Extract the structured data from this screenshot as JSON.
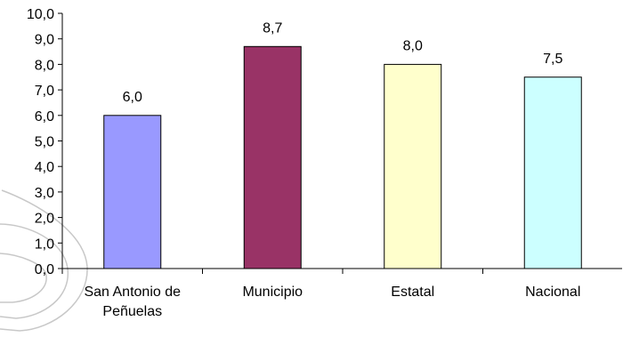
{
  "chart_data": {
    "type": "bar",
    "categories": [
      [
        "San Antonio de",
        "Peñuelas"
      ],
      [
        "Municipio"
      ],
      [
        "Estatal"
      ],
      [
        "Nacional"
      ]
    ],
    "values": [
      6.0,
      8.7,
      8.0,
      7.5
    ],
    "value_labels": [
      "6,0",
      "8,7",
      "8,0",
      "7,5"
    ],
    "bar_colors": [
      "#9999ff",
      "#993366",
      "#ffffcc",
      "#ccffff"
    ],
    "bar_edge_color": "#000000",
    "ylim": [
      0,
      10
    ],
    "y_ticks": [
      "0,0",
      "1,0",
      "2,0",
      "3,0",
      "4,0",
      "5,0",
      "6,0",
      "7,0",
      "8,0",
      "9,0",
      "10,0"
    ],
    "grid": false,
    "legend": "none",
    "watermark_color": "#c8c8c8"
  }
}
